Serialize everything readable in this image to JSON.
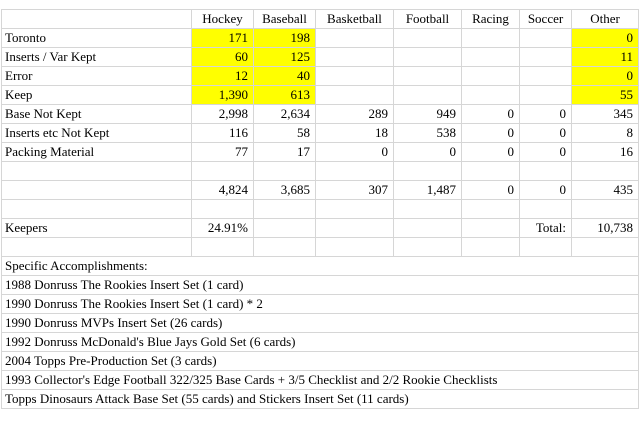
{
  "colors": {
    "highlight": "#ffff00",
    "gridline": "#d6d6d6",
    "text": "#000000",
    "background": "#ffffff"
  },
  "table": {
    "column_headers": [
      "",
      "Hockey",
      "Baseball",
      "Basketball",
      "Football",
      "Racing",
      "Soccer",
      "Other"
    ],
    "rows": [
      {
        "label": "Toronto",
        "values": [
          "171",
          "198",
          "",
          "",
          "",
          "",
          "0"
        ],
        "highlight_cols": [
          0,
          1,
          6
        ]
      },
      {
        "label": "Inserts / Var Kept",
        "values": [
          "60",
          "125",
          "",
          "",
          "",
          "",
          "11"
        ],
        "highlight_cols": [
          0,
          1,
          6
        ]
      },
      {
        "label": "Error",
        "values": [
          "12",
          "40",
          "",
          "",
          "",
          "",
          "0"
        ],
        "highlight_cols": [
          0,
          1,
          6
        ]
      },
      {
        "label": "Keep",
        "values": [
          "1,390",
          "613",
          "",
          "",
          "",
          "",
          "55"
        ],
        "highlight_cols": [
          0,
          1,
          6
        ]
      },
      {
        "label": "Base Not Kept",
        "values": [
          "2,998",
          "2,634",
          "289",
          "949",
          "0",
          "0",
          "345"
        ],
        "highlight_cols": []
      },
      {
        "label": "Inserts etc Not Kept",
        "values": [
          "116",
          "58",
          "18",
          "538",
          "0",
          "0",
          "8"
        ],
        "highlight_cols": []
      },
      {
        "label": "Packing Material",
        "values": [
          "77",
          "17",
          "0",
          "0",
          "0",
          "0",
          "16"
        ],
        "highlight_cols": []
      },
      {
        "label": "",
        "values": [
          "",
          "",
          "",
          "",
          "",
          "",
          ""
        ],
        "highlight_cols": []
      },
      {
        "label": "",
        "values": [
          "4,824",
          "3,685",
          "307",
          "1,487",
          "0",
          "0",
          "435"
        ],
        "highlight_cols": []
      },
      {
        "label": "",
        "values": [
          "",
          "",
          "",
          "",
          "",
          "",
          ""
        ],
        "highlight_cols": []
      },
      {
        "label": "Keepers",
        "values": [
          "24.91%",
          "",
          "",
          "",
          "",
          "Total:",
          "10,738"
        ],
        "highlight_cols": []
      },
      {
        "label": "",
        "values": [
          "",
          "",
          "",
          "",
          "",
          "",
          ""
        ],
        "highlight_cols": []
      }
    ]
  },
  "notes": {
    "heading": "Specific Accomplishments:",
    "items": [
      "1988 Donruss The Rookies Insert Set (1 card)",
      "1990 Donruss The Rookies Insert Set (1 card) * 2",
      "1990 Donruss MVPs Insert Set (26 cards)",
      "1992 Donruss McDonald's Blue Jays Gold Set (6 cards)",
      "2004 Topps Pre-Production Set (3 cards)",
      "1993 Collector's Edge Football 322/325 Base Cards + 3/5 Checklist and 2/2 Rookie Checklists",
      "Topps Dinosaurs Attack Base Set (55 cards) and Stickers Insert Set (11 cards)"
    ]
  }
}
